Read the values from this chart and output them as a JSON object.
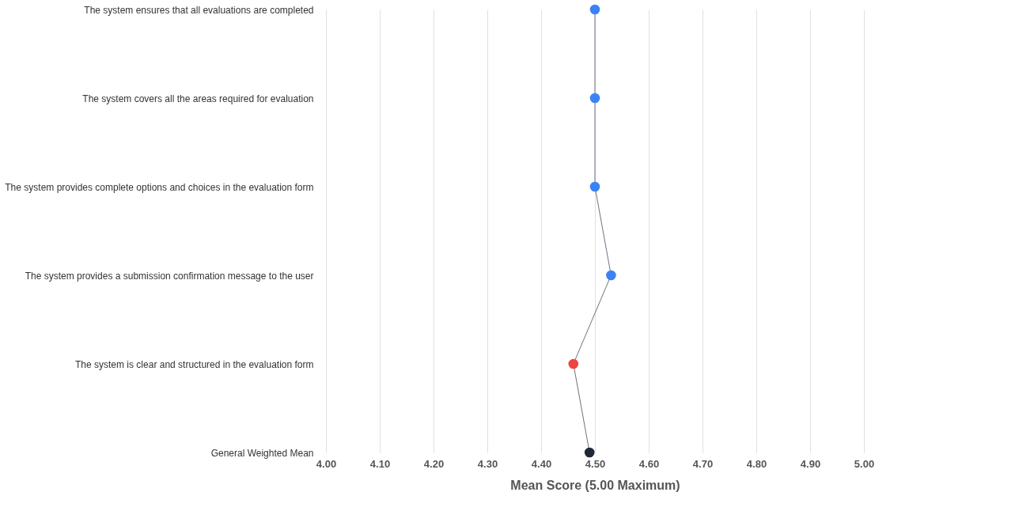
{
  "chart_data": {
    "type": "line",
    "orientation": "horizontal",
    "xlabel": "Mean Score (5.00 Maximum)",
    "categories": [
      "The system ensures that all evaluations are completed",
      "The system covers all the areas required for evaluation",
      "The system provides complete options and choices in the evaluation form",
      "The system provides a submission confirmation message to the user",
      "The system is clear and structured in the evaluation form",
      "General Weighted Mean"
    ],
    "series": [
      {
        "color": "#6b7280",
        "colors": [
          "#3b82f6",
          "#3b82f6",
          "#3b82f6",
          "#3b82f6",
          "#ef4444",
          "#1f2937"
        ],
        "values": [
          4.5,
          4.5,
          4.5,
          4.53,
          4.46,
          4.49
        ]
      }
    ],
    "xlim": [
      4.0,
      5.0
    ],
    "xticks": [
      {
        "value": 4.0,
        "label": "4.00"
      },
      {
        "value": 4.1,
        "label": "4.10"
      },
      {
        "value": 4.2,
        "label": "4.20"
      },
      {
        "value": 4.3,
        "label": "4.30"
      },
      {
        "value": 4.4,
        "label": "4.40"
      },
      {
        "value": 4.5,
        "label": "4.50"
      },
      {
        "value": 4.6,
        "label": "4.60"
      },
      {
        "value": 4.7,
        "label": "4.70"
      },
      {
        "value": 4.8,
        "label": "4.80"
      },
      {
        "value": 4.9,
        "label": "4.90"
      },
      {
        "value": 5.0,
        "label": "5.00"
      }
    ],
    "grid": "x",
    "marker": "circle",
    "line_style": "solid"
  }
}
